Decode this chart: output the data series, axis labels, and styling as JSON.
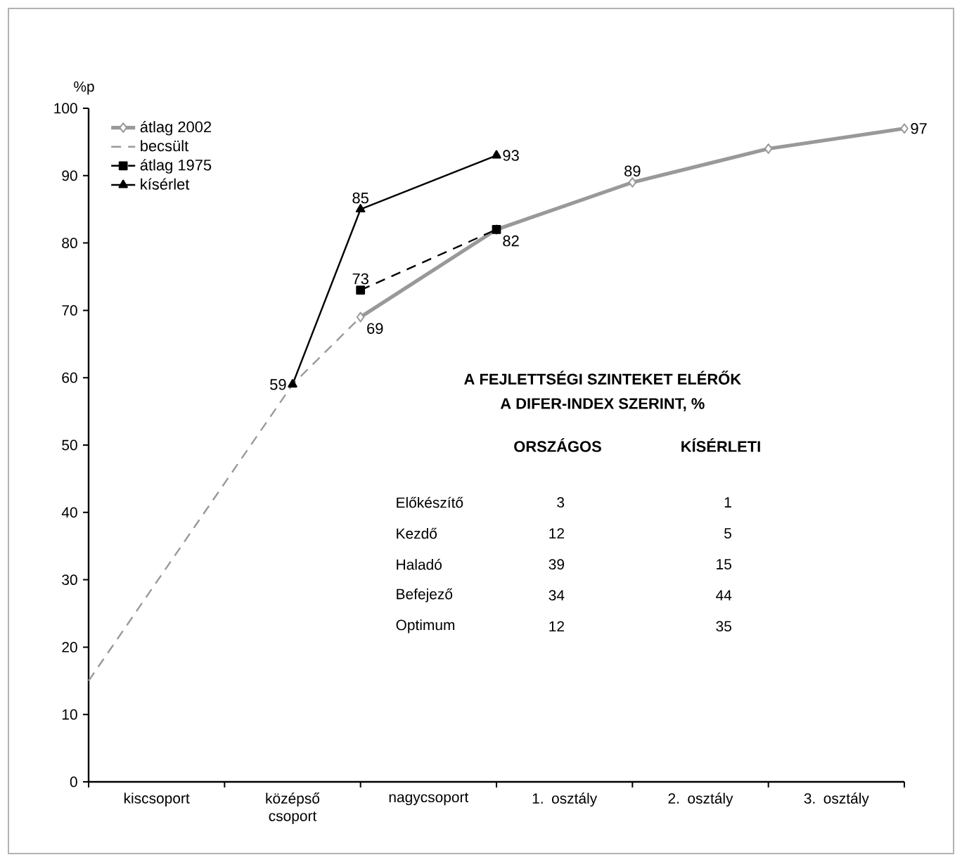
{
  "chart_data": {
    "type": "line",
    "ylabel": "%p",
    "ylim": [
      0,
      100
    ],
    "yticks": [
      0,
      10,
      20,
      30,
      40,
      50,
      60,
      70,
      80,
      90,
      100
    ],
    "categories": [
      null,
      "kiscsoport",
      null,
      "középső csoport",
      null,
      "nagycsoport",
      null,
      "1. osztály",
      null,
      "2. osztály",
      null,
      "3. osztály",
      null
    ],
    "grid": false,
    "legend": "top left",
    "series": [
      {
        "name": "átlag 2002",
        "color": "#999999",
        "marker": "diamond",
        "line_style": "solid",
        "values": [
          null,
          null,
          null,
          null,
          69,
          null,
          82,
          null,
          89,
          null,
          94,
          null,
          97
        ],
        "value_labels": [
          null,
          null,
          null,
          null,
          "69",
          null,
          "82",
          null,
          "89",
          null,
          null,
          null,
          "97"
        ]
      },
      {
        "name": "becsült",
        "color": "#999999",
        "marker": "none",
        "line_style": "dashed",
        "values": [
          15,
          null,
          null,
          59,
          69,
          null,
          82,
          null,
          null,
          null,
          null,
          null,
          null
        ]
      },
      {
        "name": "átlag 1975",
        "color": "#000000",
        "marker": "square",
        "line_style": "dashed",
        "values": [
          null,
          null,
          null,
          null,
          73,
          null,
          82,
          null,
          null,
          null,
          null,
          null,
          null
        ],
        "value_labels": [
          null,
          null,
          null,
          null,
          "73",
          null,
          null,
          null,
          null,
          null,
          null,
          null,
          null
        ]
      },
      {
        "name": "kísérlet",
        "color": "#000000",
        "marker": "triangle",
        "line_style": "solid",
        "values": [
          null,
          null,
          null,
          59,
          85,
          null,
          93,
          null,
          null,
          null,
          null,
          null,
          null
        ],
        "value_labels": [
          null,
          null,
          null,
          "59",
          "85",
          null,
          "93",
          null,
          null,
          null,
          null,
          null,
          null
        ]
      }
    ],
    "annotations": [
      "A FEJLETTSÉGI SZINTEKET ELÉRŐK",
      "A DIFER-INDEX SZERINT, %",
      "ORSZÁGOS",
      "KÍSÉRLETI",
      "Előkészítő",
      "3",
      "1",
      "Kezdő",
      "12",
      "5",
      "Haladó",
      "39",
      "15",
      "Befejező",
      "34",
      "44",
      "Optimum",
      "12",
      "35"
    ]
  }
}
